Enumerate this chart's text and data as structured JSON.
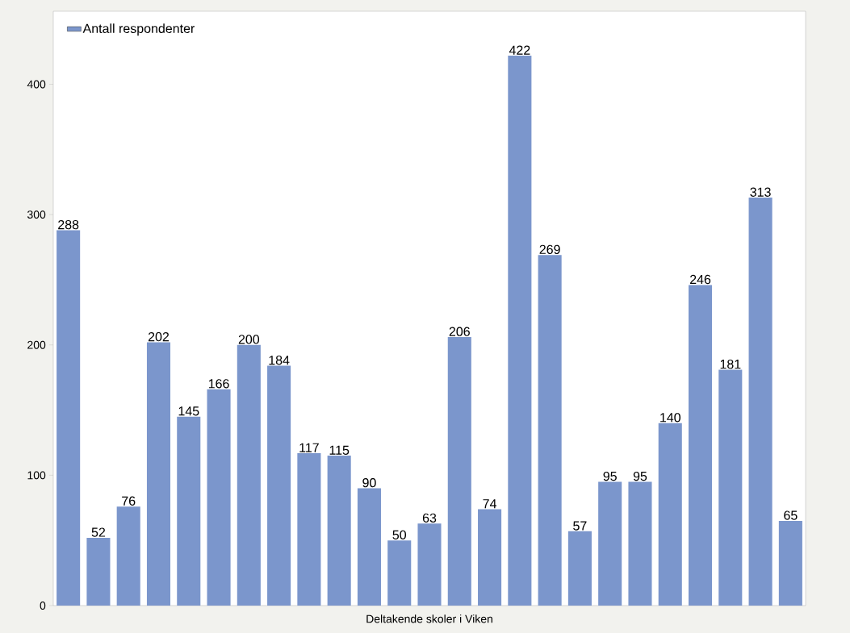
{
  "chart_data": {
    "type": "bar",
    "xlabel": "Deltakende skoler i Viken",
    "categories": [
      null,
      null,
      null,
      null,
      null,
      null,
      null,
      null,
      null,
      null,
      null,
      null,
      null,
      null,
      null,
      null,
      null,
      null,
      null,
      null,
      null,
      null,
      null,
      null,
      null
    ],
    "series": [
      {
        "name": "Antall respondenter",
        "color": "#7b96cc",
        "values": [
          288,
          52,
          76,
          202,
          145,
          166,
          200,
          184,
          117,
          115,
          90,
          50,
          63,
          206,
          74,
          422,
          269,
          57,
          95,
          95,
          140,
          246,
          181,
          313,
          65
        ]
      }
    ],
    "ylim": [
      0,
      456
    ],
    "yticks": [
      0,
      100,
      200,
      300,
      400
    ],
    "data_labels": true,
    "legend": "top left",
    "tick_labels": "y",
    "grid": false
  }
}
